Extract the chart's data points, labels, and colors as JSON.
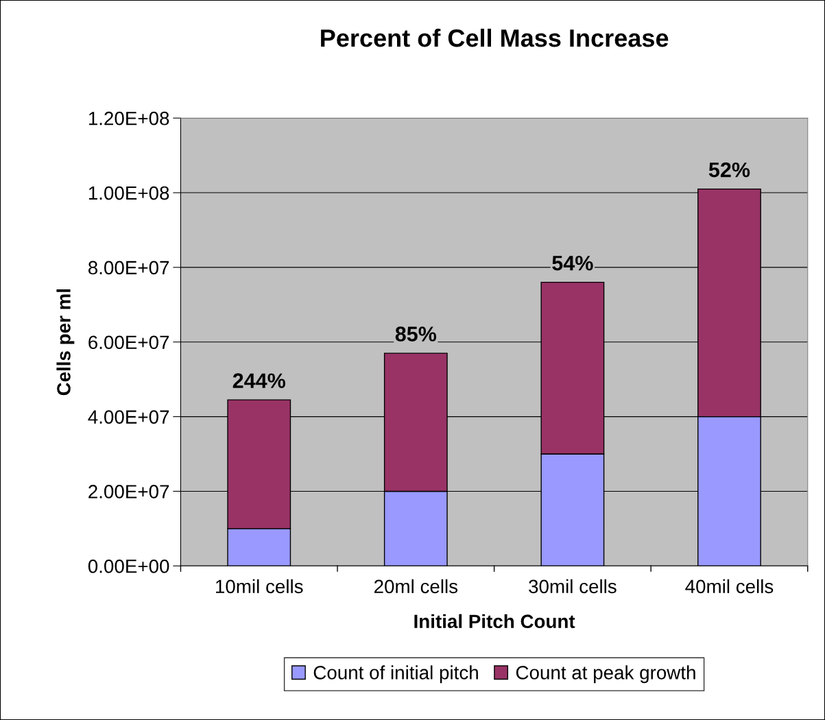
{
  "chart_data": {
    "type": "bar",
    "title": "Percent of Cell Mass Increase",
    "xlabel": "Initial Pitch Count",
    "ylabel": "Cells per ml",
    "categories": [
      "10mil cells",
      "20ml cells",
      "30mil cells",
      "40mil cells"
    ],
    "stacked": true,
    "series": [
      {
        "name": "Count of initial pitch",
        "color": "#9999ff",
        "values": [
          10000000,
          20000000,
          30000000,
          40000000
        ]
      },
      {
        "name": "Count at peak growth",
        "color": "#993366",
        "values": [
          34500000,
          37000000,
          46000000,
          61000000
        ]
      }
    ],
    "annotations": [
      {
        "text": "244%",
        "x": "10mil cells",
        "y": 44500000
      },
      {
        "text": "85%",
        "x": "20ml cells",
        "y": 57000000
      },
      {
        "text": "54%",
        "x": "30mil cells",
        "y": 76000000
      },
      {
        "text": "52%",
        "x": "40mil cells",
        "y": 101000000
      }
    ],
    "ylim": [
      0,
      120000000
    ],
    "yticks": [
      {
        "value": 0,
        "label": "0.00E+00"
      },
      {
        "value": 20000000,
        "label": "2.00E+07"
      },
      {
        "value": 40000000,
        "label": "4.00E+07"
      },
      {
        "value": 60000000,
        "label": "6.00E+07"
      },
      {
        "value": 80000000,
        "label": "8.00E+07"
      },
      {
        "value": 100000000,
        "label": "1.00E+08"
      },
      {
        "value": 120000000,
        "label": "1.20E+08"
      }
    ],
    "grid": "y",
    "legend": "bottom"
  }
}
